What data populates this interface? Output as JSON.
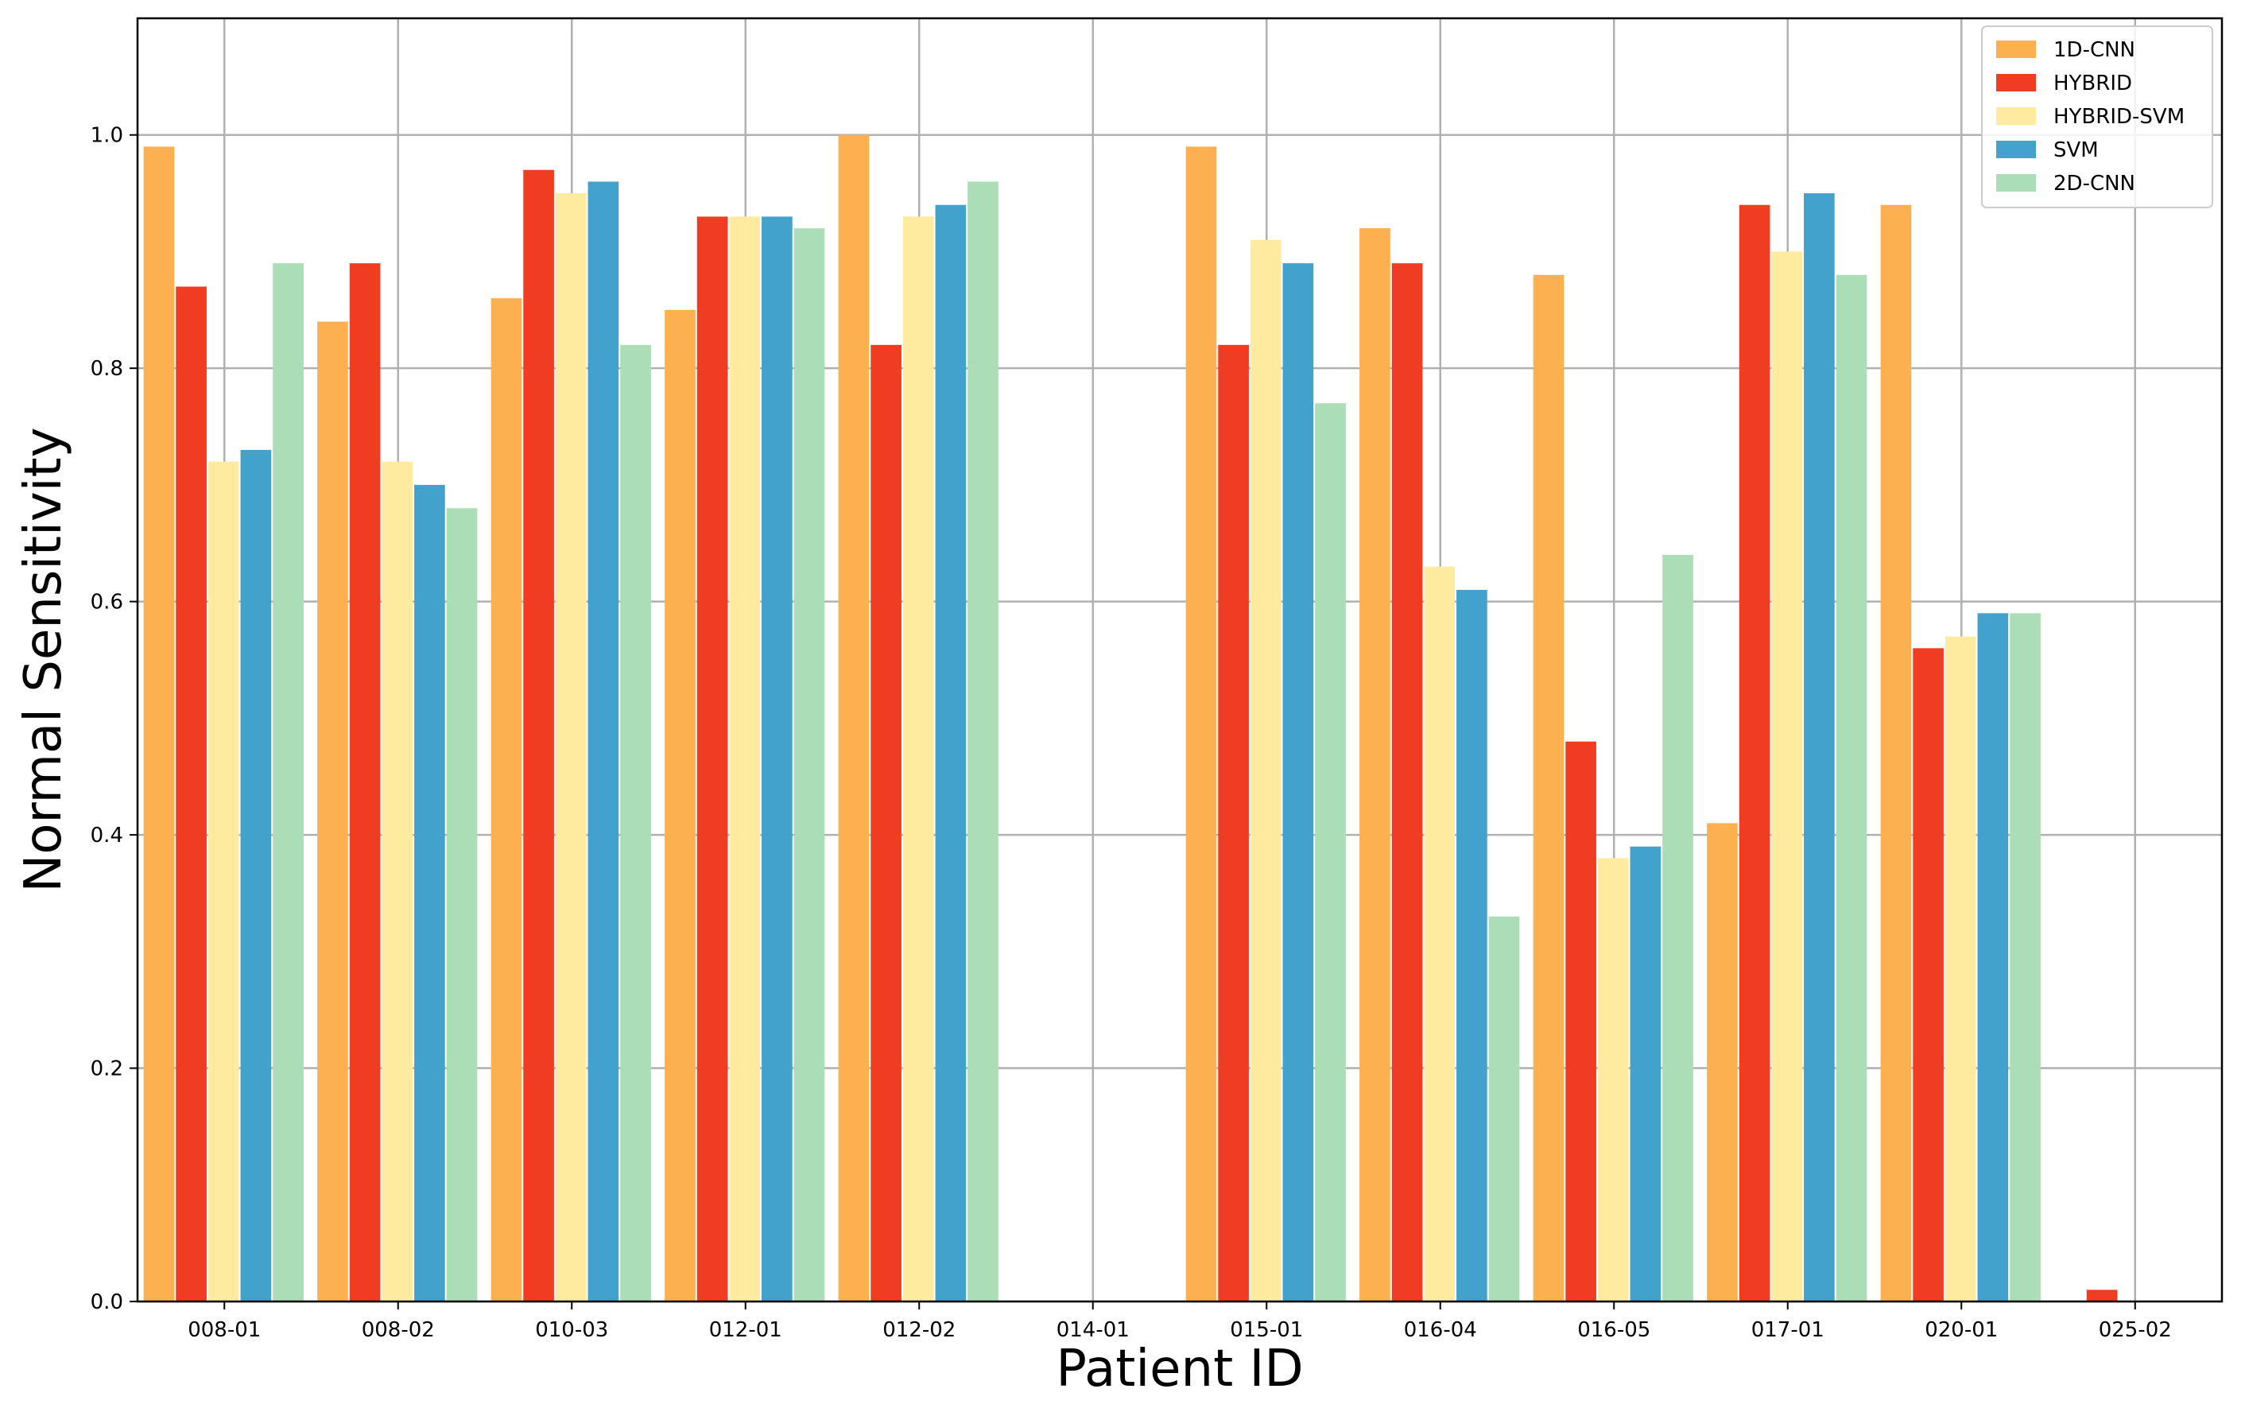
{
  "chart_data": {
    "type": "bar",
    "title": "",
    "xlabel": "Patient ID",
    "ylabel": "Normal Sensitivity",
    "ylim": [
      0,
      1.1
    ],
    "yticks": [
      "0.0",
      "0.2",
      "0.4",
      "0.6",
      "0.8",
      "1.0"
    ],
    "grid": true,
    "legend_position": "top-right",
    "categories": [
      "008-01",
      "008-02",
      "010-03",
      "012-01",
      "012-02",
      "014-01",
      "015-01",
      "016-04",
      "016-05",
      "017-01",
      "020-01",
      "025-02"
    ],
    "series": [
      {
        "name": "1D-CNN",
        "color": "#fdb050",
        "values": [
          0.99,
          0.84,
          0.86,
          0.85,
          1.0,
          0,
          0.99,
          0.92,
          0.88,
          0.41,
          0.94,
          0
        ]
      },
      {
        "name": "HYBRID",
        "color": "#f03c23",
        "values": [
          0.87,
          0.89,
          0.97,
          0.93,
          0.82,
          0,
          0.82,
          0.89,
          0.48,
          0.94,
          0.56,
          0.01
        ]
      },
      {
        "name": "HYBRID-SVM",
        "color": "#feeb9f",
        "values": [
          0.72,
          0.72,
          0.95,
          0.93,
          0.93,
          0,
          0.91,
          0.63,
          0.38,
          0.9,
          0.57,
          0
        ]
      },
      {
        "name": "SVM",
        "color": "#42a2cb",
        "values": [
          0.73,
          0.7,
          0.96,
          0.93,
          0.94,
          0,
          0.89,
          0.61,
          0.39,
          0.95,
          0.59,
          0
        ]
      },
      {
        "name": "2D-CNN",
        "color": "#abdeb6",
        "values": [
          0.89,
          0.68,
          0.82,
          0.92,
          0.96,
          0,
          0.77,
          0.33,
          0.64,
          0.88,
          0.59,
          0
        ]
      }
    ]
  }
}
